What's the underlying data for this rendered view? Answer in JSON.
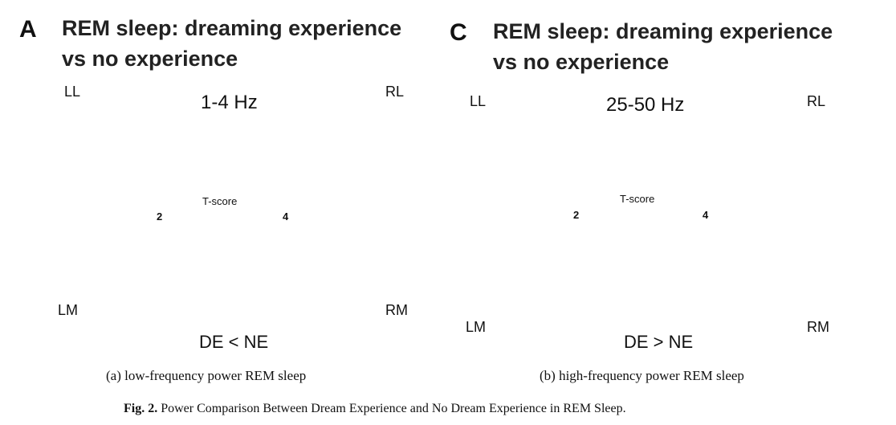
{
  "panel_a": {
    "letter": "A",
    "title_line1": "REM sleep: dreaming experience",
    "title_line2": "vs no experience",
    "freq": "1-4 Hz",
    "views": {
      "ll": "LL",
      "rl": "RL",
      "lm": "LM",
      "rm": "RM"
    },
    "colorbar": {
      "title": "T-score",
      "min": "2",
      "max": "4",
      "color_low": "#22d3a0",
      "color_high": "#1a2ccc"
    },
    "legend": "DE < NE",
    "subcaption": "(a) low-frequency power REM sleep"
  },
  "panel_c": {
    "letter": "C",
    "title_line1": "REM sleep: dreaming experience",
    "title_line2": "vs no experience",
    "freq": "25-50 Hz",
    "views": {
      "ll": "LL",
      "rl": "RL",
      "lm": "LM",
      "rm": "RM"
    },
    "colorbar": {
      "title": "T-score",
      "min": "2",
      "max": "4",
      "color_low": "#fff200",
      "color_high": "#e01010"
    },
    "legend": "DE > NE",
    "subcaption": "(b) high-frequency power REM sleep"
  },
  "caption": {
    "label": "Fig. 2.",
    "text": "Power Comparison Between Dream Experience and No Dream Experience in REM Sleep."
  }
}
